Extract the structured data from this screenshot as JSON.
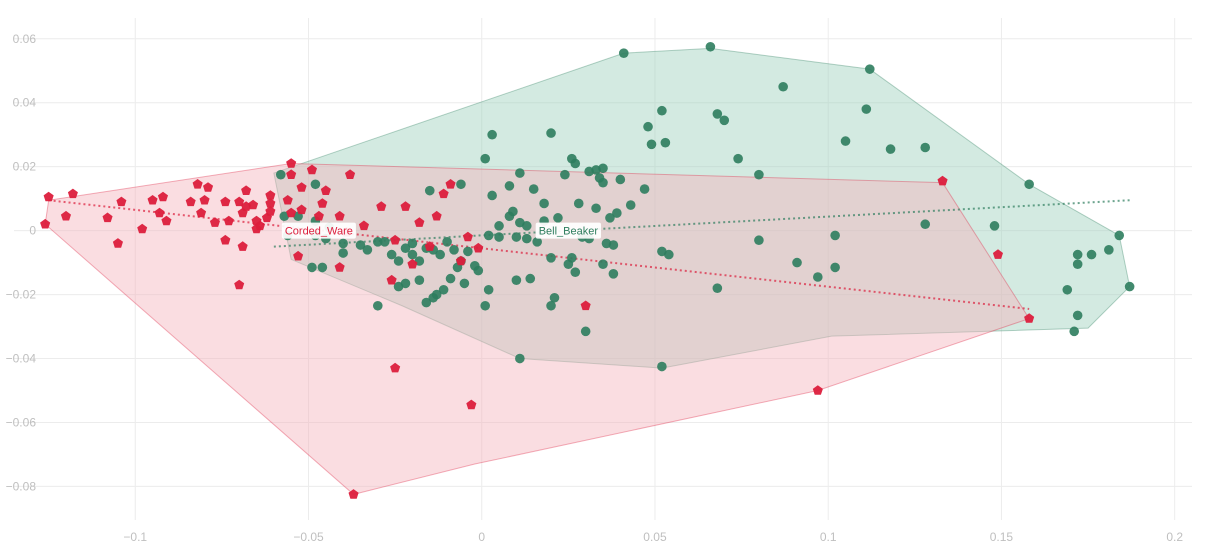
{
  "chart_data": {
    "type": "scatter",
    "xlim": [
      -0.135,
      0.205
    ],
    "ylim": [
      -0.0905,
      0.0665
    ],
    "grid": true,
    "x_ticks": [
      -0.1,
      -0.05,
      0,
      0.05,
      0.1,
      0.15,
      0.2
    ],
    "y_ticks": [
      -0.08,
      -0.06,
      -0.04,
      -0.02,
      0,
      0.02,
      0.04,
      0.06
    ],
    "x_tick_labels": [
      "−0.1",
      "−0.05",
      "0",
      "0.05",
      "0.1",
      "0.15",
      "0.2"
    ],
    "y_tick_labels": [
      "−0.08",
      "−0.06",
      "−0.04",
      "−0.02",
      "0",
      "0.02",
      "0.04",
      "0.06"
    ],
    "series": [
      {
        "name": "Corded_Ware",
        "color": "#dc1e3c",
        "fill": "#f5b4bc",
        "marker": "pentagon",
        "label_at": [
          -0.047,
          0
        ],
        "trend": [
          [
            -0.125,
            0.0095
          ],
          [
            0.158,
            -0.0245
          ]
        ],
        "hull": [
          [
            -0.125,
            0.0095
          ],
          [
            -0.055,
            0.021
          ],
          [
            0.133,
            0.015
          ],
          [
            0.158,
            -0.0275
          ],
          [
            0.097,
            -0.05
          ],
          [
            -0.002,
            -0.073
          ],
          [
            -0.037,
            -0.0825
          ],
          [
            -0.126,
            0.002
          ]
        ],
        "points": [
          [
            -0.125,
            0.0105
          ],
          [
            -0.118,
            0.0115
          ],
          [
            -0.12,
            0.0045
          ],
          [
            -0.126,
            0.002
          ],
          [
            -0.104,
            0.009
          ],
          [
            -0.108,
            0.004
          ],
          [
            -0.095,
            0.0095
          ],
          [
            -0.098,
            0.0005
          ],
          [
            -0.092,
            0.0105
          ],
          [
            -0.093,
            0.0055
          ],
          [
            -0.091,
            0.003
          ],
          [
            -0.105,
            -0.004
          ],
          [
            -0.082,
            0.0145
          ],
          [
            -0.079,
            0.0135
          ],
          [
            -0.08,
            0.0095
          ],
          [
            -0.081,
            0.0055
          ],
          [
            -0.084,
            0.009
          ],
          [
            -0.077,
            0.0025
          ],
          [
            -0.074,
            0.009
          ],
          [
            -0.073,
            0.003
          ],
          [
            -0.074,
            -0.003
          ],
          [
            -0.07,
            0.009
          ],
          [
            -0.069,
            0.0055
          ],
          [
            -0.068,
            0.0125
          ],
          [
            -0.068,
            0.0075
          ],
          [
            -0.066,
            0.008
          ],
          [
            -0.065,
            0.003
          ],
          [
            -0.065,
            0.0005
          ],
          [
            -0.064,
            0.0015
          ],
          [
            -0.062,
            0.004
          ],
          [
            -0.061,
            0.006
          ],
          [
            -0.061,
            0.0085
          ],
          [
            -0.061,
            0.011
          ],
          [
            -0.069,
            -0.005
          ],
          [
            -0.07,
            -0.017
          ],
          [
            -0.056,
            0.0095
          ],
          [
            -0.055,
            0.0055
          ],
          [
            -0.055,
            0.021
          ],
          [
            -0.055,
            0.0175
          ],
          [
            -0.052,
            0.0135
          ],
          [
            -0.052,
            0.0065
          ],
          [
            -0.049,
            0.019
          ],
          [
            -0.047,
            0.0045
          ],
          [
            -0.046,
            0.0085
          ],
          [
            -0.045,
            0.0125
          ],
          [
            -0.041,
            0.0045
          ],
          [
            -0.039,
            -0.0005
          ],
          [
            -0.038,
            0.0175
          ],
          [
            -0.034,
            0.0015
          ],
          [
            -0.041,
            -0.0115
          ],
          [
            -0.053,
            -0.008
          ],
          [
            -0.029,
            0.0075
          ],
          [
            -0.022,
            0.0075
          ],
          [
            -0.018,
            0.0025
          ],
          [
            -0.013,
            0.0045
          ],
          [
            -0.009,
            0.0145
          ],
          [
            -0.011,
            0.0115
          ],
          [
            -0.025,
            -0.003
          ],
          [
            -0.02,
            -0.0105
          ],
          [
            -0.015,
            -0.005
          ],
          [
            -0.006,
            -0.0095
          ],
          [
            -0.004,
            -0.002
          ],
          [
            -0.001,
            -0.0055
          ],
          [
            -0.026,
            -0.0155
          ],
          [
            -0.025,
            -0.043
          ],
          [
            -0.003,
            -0.0545
          ],
          [
            0.03,
            -0.0235
          ],
          [
            0.133,
            0.0155
          ],
          [
            0.149,
            -0.0075
          ],
          [
            0.158,
            -0.0275
          ],
          [
            0.097,
            -0.05
          ],
          [
            -0.037,
            -0.0825
          ]
        ]
      },
      {
        "name": "Bell_Beaker",
        "color": "#2e7d5e",
        "fill": "#9ed1bd",
        "marker": "circle",
        "label_at": [
          0.025,
          0
        ],
        "trend": [
          [
            -0.06,
            -0.005
          ],
          [
            0.187,
            0.0095
          ]
        ],
        "hull": [
          [
            -0.06,
            0.018
          ],
          [
            0.041,
            0.0555
          ],
          [
            0.066,
            0.057
          ],
          [
            0.112,
            0.0505
          ],
          [
            0.158,
            0.0145
          ],
          [
            0.184,
            -0.0015
          ],
          [
            0.187,
            -0.0175
          ],
          [
            0.175,
            -0.0305
          ],
          [
            0.101,
            -0.033
          ],
          [
            0.052,
            -0.043
          ],
          [
            0.011,
            -0.04
          ],
          [
            -0.023,
            -0.0235
          ],
          [
            -0.055,
            -0.009
          ]
        ],
        "points": [
          [
            0.041,
            0.0555
          ],
          [
            0.066,
            0.0575
          ],
          [
            0.112,
            0.0505
          ],
          [
            0.087,
            0.045
          ],
          [
            0.111,
            0.038
          ],
          [
            0.052,
            0.0375
          ],
          [
            0.068,
            0.0365
          ],
          [
            0.07,
            0.0345
          ],
          [
            0.048,
            0.0325
          ],
          [
            0.003,
            0.03
          ],
          [
            0.02,
            0.0305
          ],
          [
            0.105,
            0.028
          ],
          [
            0.053,
            0.0275
          ],
          [
            0.049,
            0.027
          ],
          [
            0.118,
            0.0255
          ],
          [
            0.128,
            0.026
          ],
          [
            0.074,
            0.0225
          ],
          [
            0.001,
            0.0225
          ],
          [
            0.026,
            0.0225
          ],
          [
            0.027,
            0.021
          ],
          [
            0.035,
            0.0195
          ],
          [
            0.031,
            0.0185
          ],
          [
            0.033,
            0.019
          ],
          [
            0.08,
            0.0175
          ],
          [
            0.011,
            0.018
          ],
          [
            0.024,
            0.0175
          ],
          [
            0.034,
            0.0165
          ],
          [
            0.04,
            0.016
          ],
          [
            0.035,
            0.015
          ],
          [
            0.008,
            0.014
          ],
          [
            0.015,
            0.013
          ],
          [
            0.047,
            0.013
          ],
          [
            -0.058,
            0.0175
          ],
          [
            -0.048,
            0.0145
          ],
          [
            -0.006,
            0.0145
          ],
          [
            -0.015,
            0.0125
          ],
          [
            0.003,
            0.011
          ],
          [
            0.028,
            0.0085
          ],
          [
            0.043,
            0.008
          ],
          [
            0.018,
            0.0085
          ],
          [
            0.009,
            0.006
          ],
          [
            0.018,
            0.003
          ],
          [
            0.022,
            0.004
          ],
          [
            0.033,
            0.007
          ],
          [
            0.037,
            0.004
          ],
          [
            0.039,
            0.0055
          ],
          [
            0.008,
            0.0045
          ],
          [
            0.011,
            0.0025
          ],
          [
            0.013,
            0.0015
          ],
          [
            0.005,
            0.0015
          ],
          [
            -0.057,
            0.0045
          ],
          [
            -0.053,
            0.0045
          ],
          [
            -0.048,
            0.003
          ],
          [
            -0.044,
            0.001
          ],
          [
            -0.048,
            -0.0015
          ],
          [
            -0.045,
            -0.0025
          ],
          [
            -0.056,
            -0.0015
          ],
          [
            -0.04,
            -0.004
          ],
          [
            -0.04,
            -0.007
          ],
          [
            -0.035,
            -0.0045
          ],
          [
            -0.033,
            -0.006
          ],
          [
            -0.03,
            -0.0035
          ],
          [
            -0.028,
            -0.0035
          ],
          [
            -0.026,
            -0.0075
          ],
          [
            -0.024,
            -0.0095
          ],
          [
            -0.022,
            -0.0055
          ],
          [
            -0.02,
            -0.004
          ],
          [
            -0.02,
            -0.0075
          ],
          [
            -0.018,
            -0.0095
          ],
          [
            -0.016,
            -0.0055
          ],
          [
            -0.014,
            -0.006
          ],
          [
            -0.012,
            -0.0075
          ],
          [
            -0.01,
            -0.0035
          ],
          [
            -0.008,
            -0.006
          ],
          [
            -0.006,
            -0.0095
          ],
          [
            -0.004,
            -0.0065
          ],
          [
            -0.002,
            -0.011
          ],
          [
            -0.001,
            -0.0125
          ],
          [
            0.002,
            -0.0015
          ],
          [
            0.005,
            -0.002
          ],
          [
            0.01,
            -0.002
          ],
          [
            0.013,
            -0.0025
          ],
          [
            0.016,
            -0.0035
          ],
          [
            0.02,
            -0.0085
          ],
          [
            0.025,
            -0.0105
          ],
          [
            0.026,
            -0.0085
          ],
          [
            0.029,
            -0.002
          ],
          [
            0.031,
            -0.0025
          ],
          [
            0.036,
            -0.004
          ],
          [
            0.038,
            -0.0045
          ],
          [
            0.038,
            -0.0135
          ],
          [
            0.035,
            -0.0105
          ],
          [
            0.027,
            -0.013
          ],
          [
            0.014,
            -0.015
          ],
          [
            0.021,
            -0.021
          ],
          [
            0.02,
            -0.0235
          ],
          [
            0.01,
            -0.0155
          ],
          [
            0.002,
            -0.0185
          ],
          [
            0.001,
            -0.0235
          ],
          [
            -0.005,
            -0.0165
          ],
          [
            -0.007,
            -0.0115
          ],
          [
            -0.009,
            -0.015
          ],
          [
            -0.011,
            -0.0185
          ],
          [
            -0.013,
            -0.02
          ],
          [
            -0.014,
            -0.021
          ],
          [
            -0.016,
            -0.0225
          ],
          [
            -0.018,
            -0.0155
          ],
          [
            -0.022,
            -0.0165
          ],
          [
            -0.024,
            -0.0175
          ],
          [
            -0.03,
            -0.0235
          ],
          [
            -0.046,
            -0.0115
          ],
          [
            -0.049,
            -0.0115
          ],
          [
            0.03,
            -0.0315
          ],
          [
            0.011,
            -0.04
          ],
          [
            0.052,
            -0.0425
          ],
          [
            0.052,
            -0.0065
          ],
          [
            0.054,
            -0.0075
          ],
          [
            0.068,
            -0.018
          ],
          [
            0.08,
            -0.003
          ],
          [
            0.091,
            -0.01
          ],
          [
            0.097,
            -0.0145
          ],
          [
            0.102,
            -0.0115
          ],
          [
            0.102,
            -0.0015
          ],
          [
            0.128,
            0.002
          ],
          [
            0.148,
            0.0015
          ],
          [
            0.158,
            0.0145
          ],
          [
            0.169,
            -0.0185
          ],
          [
            0.171,
            -0.0315
          ],
          [
            0.172,
            -0.0265
          ],
          [
            0.172,
            -0.0075
          ],
          [
            0.172,
            -0.0105
          ],
          [
            0.176,
            -0.0075
          ],
          [
            0.181,
            -0.006
          ],
          [
            0.184,
            -0.0015
          ],
          [
            0.187,
            -0.0175
          ]
        ]
      }
    ]
  }
}
